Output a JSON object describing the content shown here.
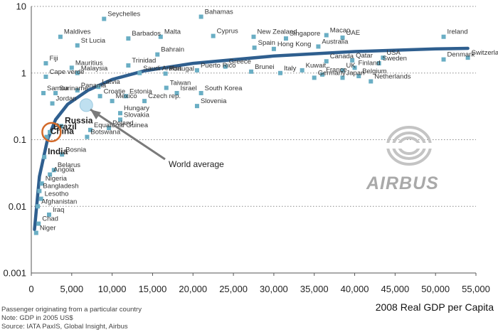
{
  "chart_data": {
    "type": "scatter",
    "x_label": "2008 Real GDP per Capita",
    "x_range": [
      0,
      55000
    ],
    "x_ticks": [
      "0",
      "5,000",
      "10,000",
      "15,000",
      "20,000",
      "25,000",
      "30,000",
      "35,000",
      "40,000",
      "45,000",
      "50,000",
      "55,000"
    ],
    "y_scale": "log",
    "y_range": [
      0.001,
      10
    ],
    "y_ticks": [
      "0.001",
      "0.01",
      "0.1",
      "1",
      "10"
    ],
    "grid": "horizontal dotted",
    "trend_line": [
      [
        400,
        0.0045
      ],
      [
        1000,
        0.028
      ],
      [
        2000,
        0.1
      ],
      [
        3000,
        0.2
      ],
      [
        4500,
        0.34
      ],
      [
        7000,
        0.55
      ],
      [
        10000,
        0.8
      ],
      [
        14000,
        1.08
      ],
      [
        20000,
        1.4
      ],
      [
        30000,
        1.8
      ],
      [
        40000,
        2.1
      ],
      [
        50000,
        2.3
      ],
      [
        54000,
        2.35
      ]
    ],
    "points": [
      {
        "x": 9000,
        "y": 6.5,
        "label": "Seychelles"
      },
      {
        "x": 21000,
        "y": 7.0,
        "label": "Bahamas"
      },
      {
        "x": 3600,
        "y": 3.5,
        "label": "Maldives"
      },
      {
        "x": 12000,
        "y": 3.3,
        "label": "Barbados"
      },
      {
        "x": 16000,
        "y": 3.5,
        "label": "Malta"
      },
      {
        "x": 22500,
        "y": 3.6,
        "label": "Cyprus"
      },
      {
        "x": 27500,
        "y": 3.5,
        "label": "New Zealand"
      },
      {
        "x": 31500,
        "y": 3.3,
        "label": "Singapore"
      },
      {
        "x": 36500,
        "y": 3.7,
        "label": "Macao"
      },
      {
        "x": 38500,
        "y": 3.4,
        "label": "UAE"
      },
      {
        "x": 51000,
        "y": 3.5,
        "label": "Ireland"
      },
      {
        "x": 5700,
        "y": 2.6,
        "label": "St Lucia"
      },
      {
        "x": 15600,
        "y": 1.9,
        "label": "Bahrain"
      },
      {
        "x": 27600,
        "y": 2.4,
        "label": "Spain"
      },
      {
        "x": 30000,
        "y": 2.3,
        "label": "Hong Kong"
      },
      {
        "x": 35500,
        "y": 2.5,
        "label": "Australia"
      },
      {
        "x": 1800,
        "y": 1.4,
        "label": "Fiji"
      },
      {
        "x": 5000,
        "y": 1.2,
        "label": "Mauritius"
      },
      {
        "x": 5700,
        "y": 1.0,
        "label": "Malaysia"
      },
      {
        "x": 1800,
        "y": 0.88,
        "label": "Cape verde"
      },
      {
        "x": 12000,
        "y": 1.3,
        "label": "Trinidad"
      },
      {
        "x": 13400,
        "y": 1.0,
        "label": "Saudi Arabia"
      },
      {
        "x": 16600,
        "y": 0.98,
        "label": "Portugal"
      },
      {
        "x": 20500,
        "y": 1.1,
        "label": "Puerto Rico"
      },
      {
        "x": 24000,
        "y": 1.25,
        "label": "Greece"
      },
      {
        "x": 27200,
        "y": 1.05,
        "label": "Brunei"
      },
      {
        "x": 30800,
        "y": 1.0,
        "label": "Italy"
      },
      {
        "x": 33500,
        "y": 1.1,
        "label": "Kuwait"
      },
      {
        "x": 36500,
        "y": 1.5,
        "label": "Canada"
      },
      {
        "x": 39700,
        "y": 1.55,
        "label": "Qatar"
      },
      {
        "x": 43500,
        "y": 1.7,
        "label": "USA"
      },
      {
        "x": 40000,
        "y": 1.2,
        "label": "Finland"
      },
      {
        "x": 38500,
        "y": 1.1,
        "label": "UK"
      },
      {
        "x": 43000,
        "y": 1.4,
        "label": "Sweden"
      },
      {
        "x": 51000,
        "y": 1.6,
        "label": "Denmark"
      },
      {
        "x": 54000,
        "y": 1.7,
        "label": "Switzerland"
      },
      {
        "x": 36000,
        "y": 0.95,
        "label": "France"
      },
      {
        "x": 35000,
        "y": 0.85,
        "label": "Germany"
      },
      {
        "x": 38500,
        "y": 0.85,
        "label": "Japan"
      },
      {
        "x": 40500,
        "y": 0.9,
        "label": "Belgium"
      },
      {
        "x": 42000,
        "y": 0.75,
        "label": "Netherlands"
      },
      {
        "x": 1500,
        "y": 0.5,
        "label": "Samoa"
      },
      {
        "x": 3000,
        "y": 0.5,
        "label": "Suriname"
      },
      {
        "x": 2600,
        "y": 0.35,
        "label": "Jordan"
      },
      {
        "x": 5700,
        "y": 0.55,
        "label": "Panama"
      },
      {
        "x": 8300,
        "y": 0.62,
        "label": "Latvia"
      },
      {
        "x": 8500,
        "y": 0.45,
        "label": "Croatie"
      },
      {
        "x": 11700,
        "y": 0.45,
        "label": "Estonia"
      },
      {
        "x": 16700,
        "y": 0.6,
        "label": "Taiwan"
      },
      {
        "x": 18000,
        "y": 0.5,
        "label": "Israel"
      },
      {
        "x": 21000,
        "y": 0.5,
        "label": "South Korea"
      },
      {
        "x": 10000,
        "y": 0.38,
        "label": "Mexico"
      },
      {
        "x": 14000,
        "y": 0.38,
        "label": "Czech rep."
      },
      {
        "x": 11000,
        "y": 0.25,
        "label": "Hungary"
      },
      {
        "x": 11000,
        "y": 0.2,
        "label": "Slovakia"
      },
      {
        "x": 20500,
        "y": 0.32,
        "label": "Slovenia"
      },
      {
        "x": 9600,
        "y": 0.15,
        "label": "Poland"
      },
      {
        "x": 7300,
        "y": 0.14,
        "label": "Equatorial Guinea"
      },
      {
        "x": 6900,
        "y": 0.11,
        "label": "Botswana"
      },
      {
        "x": 2300,
        "y": 0.13,
        "label": "Brazil"
      },
      {
        "x": 1900,
        "y": 0.11,
        "label": "China"
      },
      {
        "x": 3700,
        "y": 0.16,
        "label": "Russia"
      },
      {
        "x": 3800,
        "y": 0.06,
        "label": "Bosnia"
      },
      {
        "x": 1600,
        "y": 0.055,
        "label": "India"
      },
      {
        "x": 2800,
        "y": 0.035,
        "label": "Belarus"
      },
      {
        "x": 2300,
        "y": 0.03,
        "label": "Angola"
      },
      {
        "x": 1300,
        "y": 0.022,
        "label": "Nigeria"
      },
      {
        "x": 1000,
        "y": 0.017,
        "label": "Bangladesh"
      },
      {
        "x": 1200,
        "y": 0.013,
        "label": "Lesotho"
      },
      {
        "x": 800,
        "y": 0.01,
        "label": "Afghanistan"
      },
      {
        "x": 2200,
        "y": 0.0075,
        "label": "Iraq"
      },
      {
        "x": 900,
        "y": 0.0055,
        "label": "Chad"
      },
      {
        "x": 600,
        "y": 0.004,
        "label": "Niger"
      }
    ],
    "highlights": [
      {
        "x": 2500,
        "y": 0.13,
        "label": "Brazil",
        "style": "orange-ring"
      },
      {
        "x": 6800,
        "y": 0.33,
        "label": "World average",
        "style": "light-blue-disc"
      }
    ],
    "annotation": "World average"
  },
  "notes": {
    "line1": "Passenger originating from a particular country",
    "line2": "Note: GDP in 2005 US$",
    "line3": "Source: IATA PaxIS, Global Insight, Airbus"
  },
  "logo": {
    "text": "AIRBUS"
  },
  "colors": {
    "marker": "#6aaec4",
    "trend": "#2f5f8f",
    "ring": "#d36a2a",
    "world": "#bfe0f0"
  }
}
